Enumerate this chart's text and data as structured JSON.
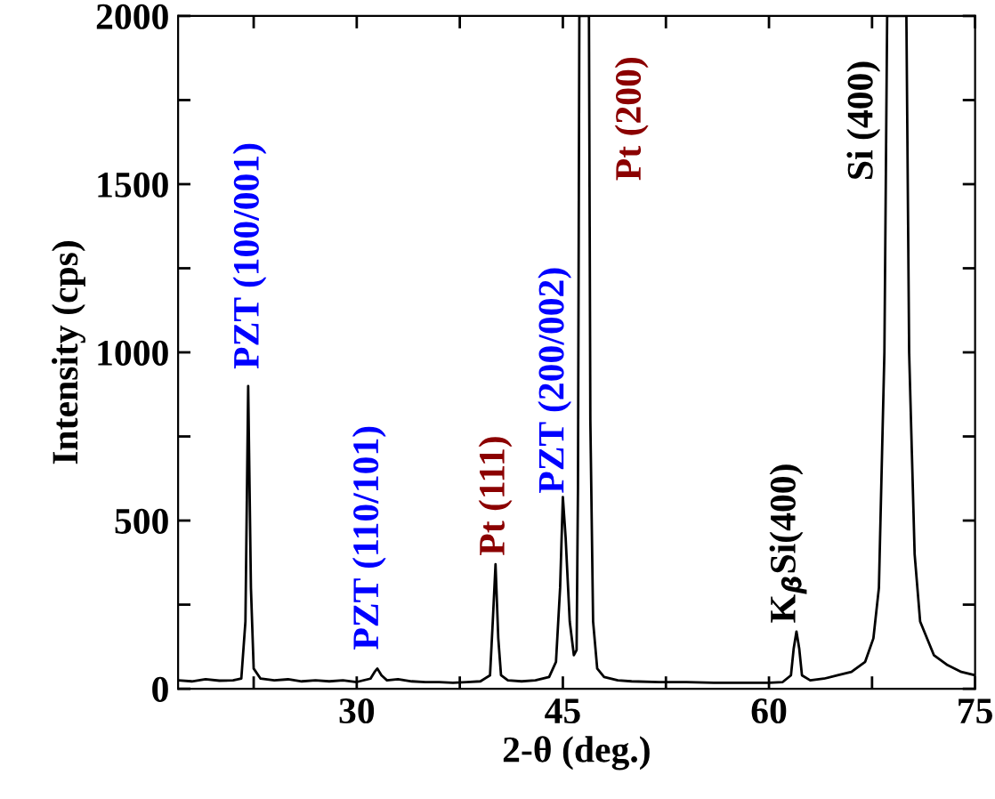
{
  "chart_data": {
    "type": "line",
    "xlabel": "2-θ (deg.)",
    "ylabel": "Intensity (cps)",
    "series": [
      {
        "color": "#000000",
        "x": [
          17,
          18,
          19,
          20,
          21,
          21.6,
          21.9,
          22.1,
          22.3,
          22.5,
          23,
          24,
          25,
          26,
          27,
          28,
          29,
          30,
          31,
          31.3,
          31.5,
          31.8,
          32.2,
          33,
          34,
          35,
          36,
          37,
          38,
          39,
          39.7,
          39.9,
          40.1,
          40.3,
          40.5,
          41,
          42,
          43,
          44,
          44.5,
          44.8,
          45.0,
          45.2,
          45.5,
          45.8,
          46.0,
          46.1,
          46.2,
          46.9,
          47.0,
          47.2,
          47.5,
          48,
          49,
          50,
          52,
          54,
          56,
          58,
          60,
          61,
          61.6,
          61.8,
          62.0,
          62.2,
          62.4,
          63,
          64,
          65,
          66,
          67,
          67.6,
          68.0,
          68.4,
          68.6,
          70.0,
          70.2,
          70.6,
          71,
          72,
          73,
          74,
          75
        ],
        "values": [
          25,
          22,
          28,
          24,
          25,
          30,
          200,
          900,
          300,
          60,
          30,
          25,
          28,
          22,
          25,
          22,
          25,
          20,
          30,
          50,
          60,
          40,
          25,
          28,
          22,
          20,
          20,
          18,
          20,
          22,
          40,
          200,
          370,
          150,
          40,
          25,
          22,
          25,
          35,
          80,
          300,
          570,
          450,
          200,
          100,
          115,
          600,
          2000,
          2000,
          800,
          200,
          60,
          35,
          25,
          22,
          20,
          20,
          18,
          18,
          18,
          20,
          40,
          120,
          170,
          120,
          40,
          25,
          30,
          40,
          50,
          80,
          150,
          300,
          1000,
          2000,
          2000,
          1000,
          400,
          200,
          100,
          70,
          50,
          40
        ]
      }
    ],
    "xlim": [
      17,
      75
    ],
    "ylim": [
      0,
      2000
    ],
    "xticks": [
      {
        "value": 22.5,
        "label": null
      },
      30,
      {
        "value": 37.5,
        "label": null
      },
      45,
      {
        "value": 52.5,
        "label": null
      },
      60,
      {
        "value": 67.5,
        "label": null
      },
      75
    ],
    "yticks": [
      0,
      {
        "value": 250,
        "label": null
      },
      500,
      {
        "value": 750,
        "label": null
      },
      1000,
      {
        "value": 1250,
        "label": null
      },
      1500,
      {
        "value": 1750,
        "label": null
      },
      2000
    ],
    "grid": false,
    "legend": false,
    "marker": "none",
    "line_style": "solid",
    "annotations": [
      "PZT (100/001)",
      "PZT (110/101)",
      "Pt (111)",
      "PZT (200/002)",
      "Pt (200)",
      "K$_{β}$Si(400)",
      "Si (400)"
    ]
  }
}
